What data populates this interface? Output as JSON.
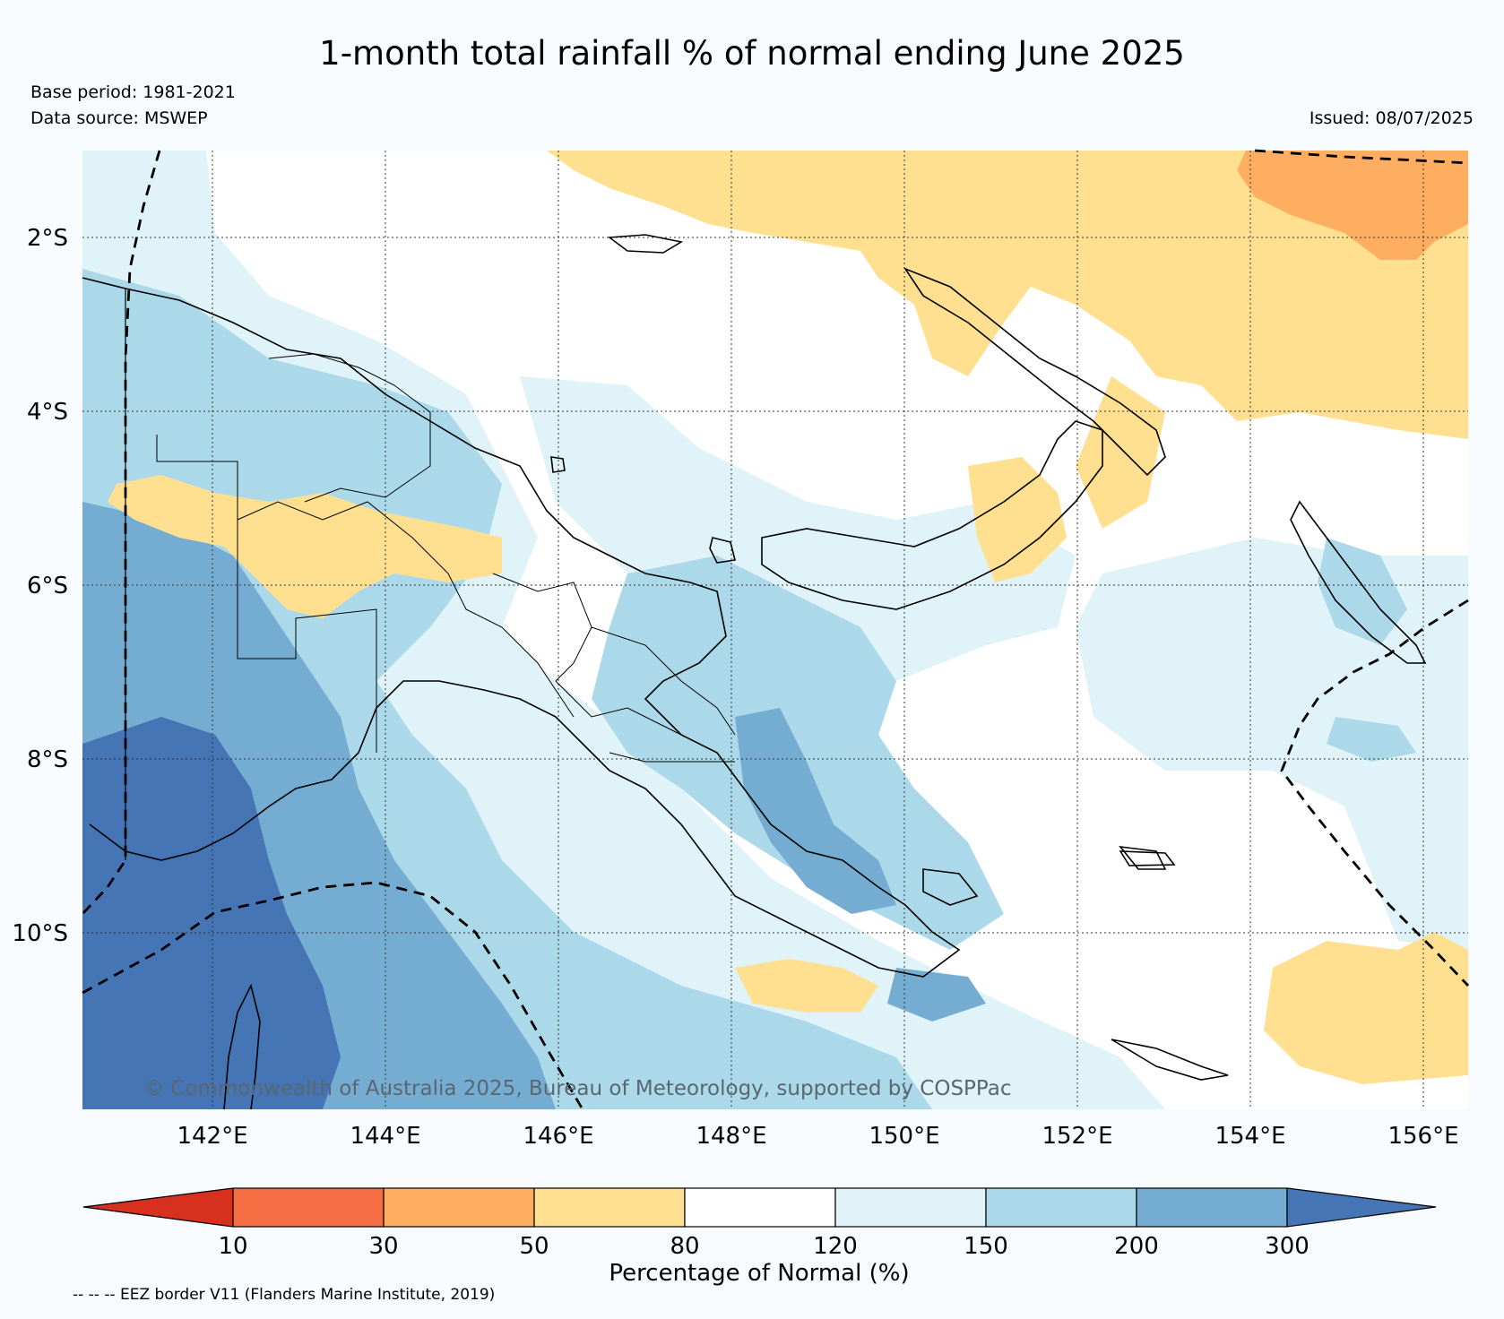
{
  "title": "1-month total rainfall % of normal ending June 2025",
  "base_period": "Base period: 1981-2021",
  "data_source": "Data source: MSWEP",
  "issued": "Issued: 08/07/2025",
  "map": {
    "lon_range": [
      140.5,
      156.5
    ],
    "lat_range": [
      -12.1,
      -1.0
    ],
    "lat_ticks": [
      {
        "value": -2,
        "label": "2°S"
      },
      {
        "value": -4,
        "label": "4°S"
      },
      {
        "value": -6,
        "label": "6°S"
      },
      {
        "value": -8,
        "label": "8°S"
      },
      {
        "value": -10,
        "label": "10°S"
      }
    ],
    "lon_ticks": [
      {
        "value": 142,
        "label": "142°E"
      },
      {
        "value": 144,
        "label": "144°E"
      },
      {
        "value": 146,
        "label": "146°E"
      },
      {
        "value": 148,
        "label": "148°E"
      },
      {
        "value": 150,
        "label": "150°E"
      },
      {
        "value": 152,
        "label": "152°E"
      },
      {
        "value": 154,
        "label": "154°E"
      },
      {
        "value": 156,
        "label": "156°E"
      }
    ],
    "gridlines": true,
    "copyright": "© Commonwealth of Australia 2025, Bureau of Meteorology, supported by COSPPac"
  },
  "colorbar": {
    "title": "Percentage of Normal (%)",
    "boundaries": [
      "10",
      "30",
      "50",
      "80",
      "120",
      "150",
      "200",
      "300"
    ],
    "colors": [
      "#d7301f",
      "#f46d43",
      "#fdae61",
      "#fee090",
      "#ffffff",
      "#e0f3f8",
      "#abd9e9",
      "#74add1",
      "#4575b4"
    ]
  },
  "legend_note": "-- -- -- EEZ border V11 (Flanders Marine Institute, 2019)"
}
